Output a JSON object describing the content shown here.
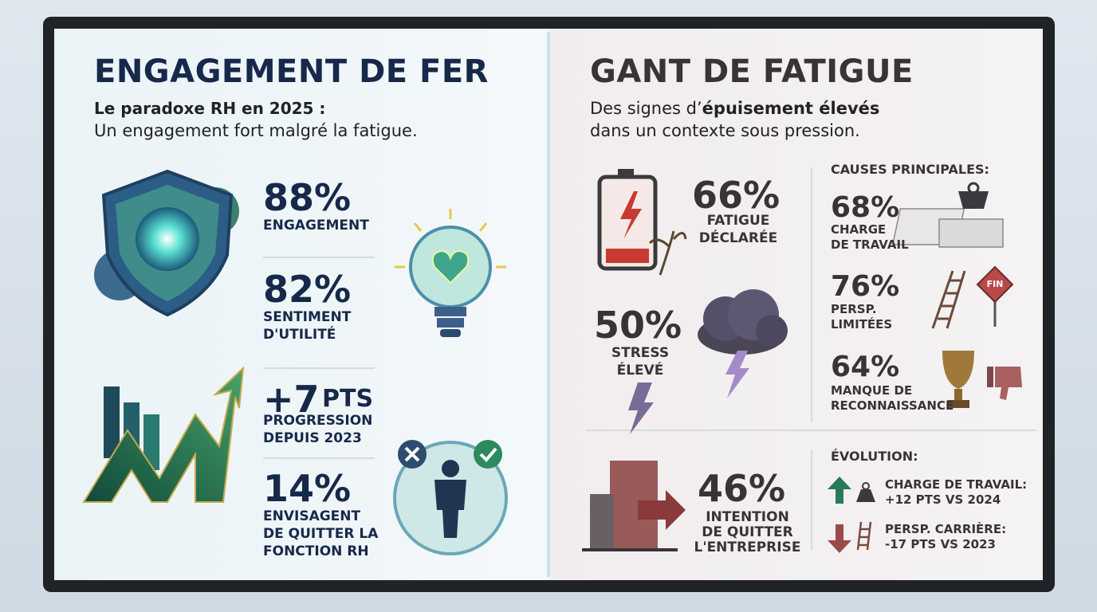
{
  "left": {
    "title": "ENGAGEMENT DE FER",
    "subtitle_bold": "Le paradoxe RH en 2025 :",
    "subtitle": "Un engagement fort malgré la fatigue.",
    "stats": [
      {
        "value": "88%",
        "label_lines": [
          "ENGAGEMENT"
        ]
      },
      {
        "value": "82%",
        "label_lines": [
          "SENTIMENT",
          "D'UTILITÉ"
        ]
      },
      {
        "value": "+7",
        "unit": "PTS",
        "label_lines": [
          "PROGRESSION",
          "DEPUIS 2023"
        ]
      },
      {
        "value": "14%",
        "label_lines": [
          "ENVISAGENT",
          "DE QUITTER LA",
          "FONCTION RH"
        ]
      }
    ]
  },
  "right": {
    "title": "GANT DE FATIGUE",
    "subtitle": [
      "Des signes d’",
      "épuisement élevés",
      "dans un contexte sous pression."
    ],
    "stats": [
      {
        "value": "66%",
        "label_lines": [
          "FATIGUE",
          "DÉCLARÉE"
        ]
      },
      {
        "value": "50%",
        "label_lines": [
          "STRESS",
          "ÉLEVÉ"
        ]
      },
      {
        "value": "46%",
        "label_lines": [
          "INTENTION",
          "DE QUITTER",
          "L'ENTREPRISE"
        ]
      }
    ],
    "causes": {
      "heading": "CAUSES PRINCIPALES:",
      "items": [
        {
          "value": "68%",
          "label_lines": [
            "CHARGE",
            "DE TRAVAIL"
          ]
        },
        {
          "value": "76%",
          "label_lines": [
            "PERSP.",
            "LIMITÉES"
          ]
        },
        {
          "value": "64%",
          "label_lines": [
            "MANQUE DE",
            "RECONNAISSANCE"
          ]
        }
      ],
      "sign": "FIN"
    },
    "evolution": {
      "heading": "ÉVOLUTION:",
      "items": [
        {
          "label": "CHARGE DE TRAVAIL:",
          "change": "+12 PTS VS 2024"
        },
        {
          "label": "PERSP. CARRIÈRE:",
          "change": "-17 PTS VS 2023"
        }
      ]
    }
  }
}
